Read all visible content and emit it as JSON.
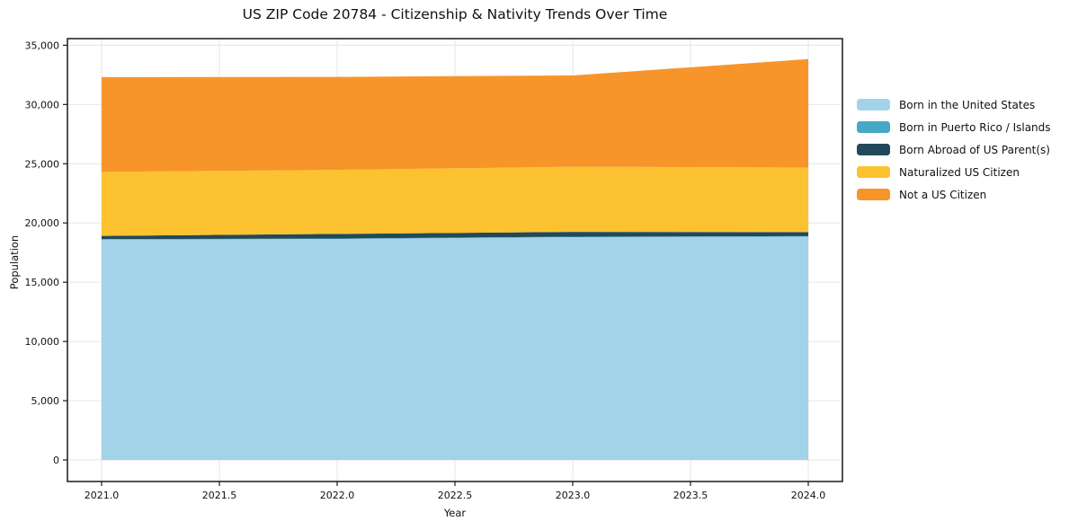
{
  "title": "US ZIP Code 20784 - Citizenship & Nativity Trends Over Time",
  "chart_data": {
    "type": "area",
    "stacked": true,
    "title": "US ZIP Code 20784 - Citizenship & Nativity Trends Over Time",
    "xlabel": "Year",
    "ylabel": "Population",
    "x": [
      2021,
      2022,
      2023,
      2024
    ],
    "series": [
      {
        "name": "Born in the United States",
        "color": "#a2d3e9",
        "values": [
          18600,
          18650,
          18800,
          18850
        ]
      },
      {
        "name": "Born in Puerto Rico / Islands",
        "color": "#45a8c4",
        "values": [
          40,
          40,
          40,
          40
        ]
      },
      {
        "name": "Born Abroad of US Parent(s)",
        "color": "#22495a",
        "values": [
          270,
          390,
          410,
          340
        ]
      },
      {
        "name": "Naturalized US Citizen",
        "color": "#fcc230",
        "values": [
          5400,
          5400,
          5500,
          5450
        ]
      },
      {
        "name": "Not a US Citizen",
        "color": "#f7952a",
        "values": [
          8000,
          7850,
          7700,
          9150
        ]
      }
    ],
    "stacked_totals": [
      32310,
      32330,
      32450,
      33830
    ],
    "xticks": [
      2021.0,
      2021.5,
      2022.0,
      2022.5,
      2023.0,
      2023.5,
      2024.0
    ],
    "xtick_labels": [
      "2021.0",
      "2021.5",
      "2022.0",
      "2022.5",
      "2023.0",
      "2023.5",
      "2024.0"
    ],
    "yticks": [
      0,
      5000,
      10000,
      15000,
      20000,
      25000,
      30000,
      35000
    ],
    "ytick_labels": [
      "0",
      "5,000",
      "10,000",
      "15,000",
      "20,000",
      "25,000",
      "30,000",
      "35,000"
    ],
    "xlim": [
      2020.855,
      2024.145
    ],
    "ylim": [
      -1820,
      35560
    ],
    "grid": true,
    "legend_position": "right",
    "colors": {
      "grid": "#e6e6e6",
      "spine": "#1a1a1a",
      "background": "#ffffff",
      "text": "#111111"
    }
  }
}
